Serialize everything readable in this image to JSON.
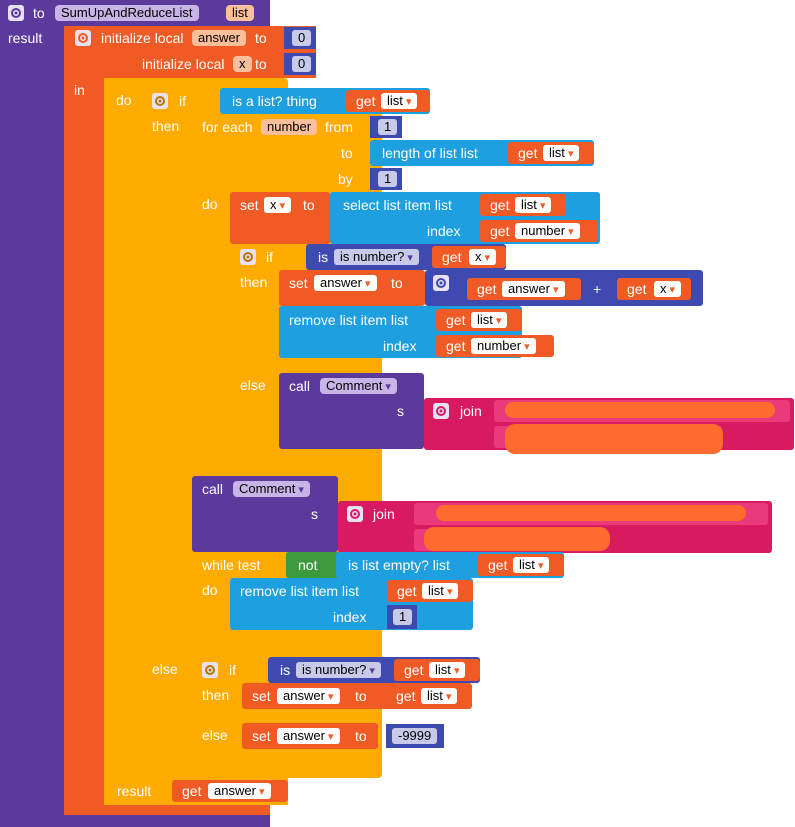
{
  "procedure": {
    "to_label": "to",
    "name": "SumUpAndReduceList",
    "param": "list",
    "result_label": "result"
  },
  "locals": {
    "init_label": "initialize local",
    "answer_name": "answer",
    "to_label": "to",
    "answer_value": "0",
    "x_name": "x",
    "x_value": "0",
    "in_label": "in"
  },
  "do_block": {
    "do_label": "do",
    "if_label": "if",
    "is_list_label": "is a list?  thing",
    "get_label": "get",
    "list_var": "list",
    "then_label": "then",
    "else_label": "else"
  },
  "for_each": {
    "for_each_label": "for each",
    "var": "number",
    "from_label": "from",
    "from_value": "1",
    "to_label": "to",
    "length_label": "length of list  list",
    "by_label": "by",
    "by_value": "1",
    "do_label": "do"
  },
  "set_x": {
    "set_label": "set",
    "var": "x",
    "to_label": "to",
    "select_label": "select list item  list",
    "index_label": "index",
    "number_var": "number"
  },
  "inner_if": {
    "if_label": "if",
    "is_number_label": "is number?",
    "x_var": "x",
    "then_label": "then",
    "set_label": "set",
    "answer_var": "answer",
    "to_label": "to",
    "plus": "+",
    "remove_label": "remove list item  list",
    "index_label": "index",
    "else_label": "else",
    "call_label": "call",
    "comment_name": "Comment",
    "s_label": "s",
    "join_label": "join"
  },
  "call2": {
    "call_label": "call",
    "comment_name": "Comment",
    "s_label": "s",
    "join_label": "join"
  },
  "while": {
    "while_label": "while  test",
    "not_label": "not",
    "is_empty_label": "is list empty?  list",
    "do_label": "do",
    "remove_label": "remove list item  list",
    "index_label": "index",
    "index_value": "1"
  },
  "outer_else": {
    "else_label": "else",
    "if_label": "if",
    "is_number_label": "is number?",
    "then_label": "then",
    "set_label": "set",
    "answer_var": "answer",
    "to_label": "to",
    "else_label2": "else",
    "value": "-9999"
  },
  "result": {
    "result_label": "result",
    "get_label": "get",
    "answer_var": "answer"
  },
  "colors": {
    "procedure": "#5b3a9c",
    "local": "#f05a24",
    "control": "#ffab00",
    "list": "#1e9fe0",
    "math": "#3f4ab0",
    "logic": "#3c9a3c",
    "text": "#d81b60"
  }
}
